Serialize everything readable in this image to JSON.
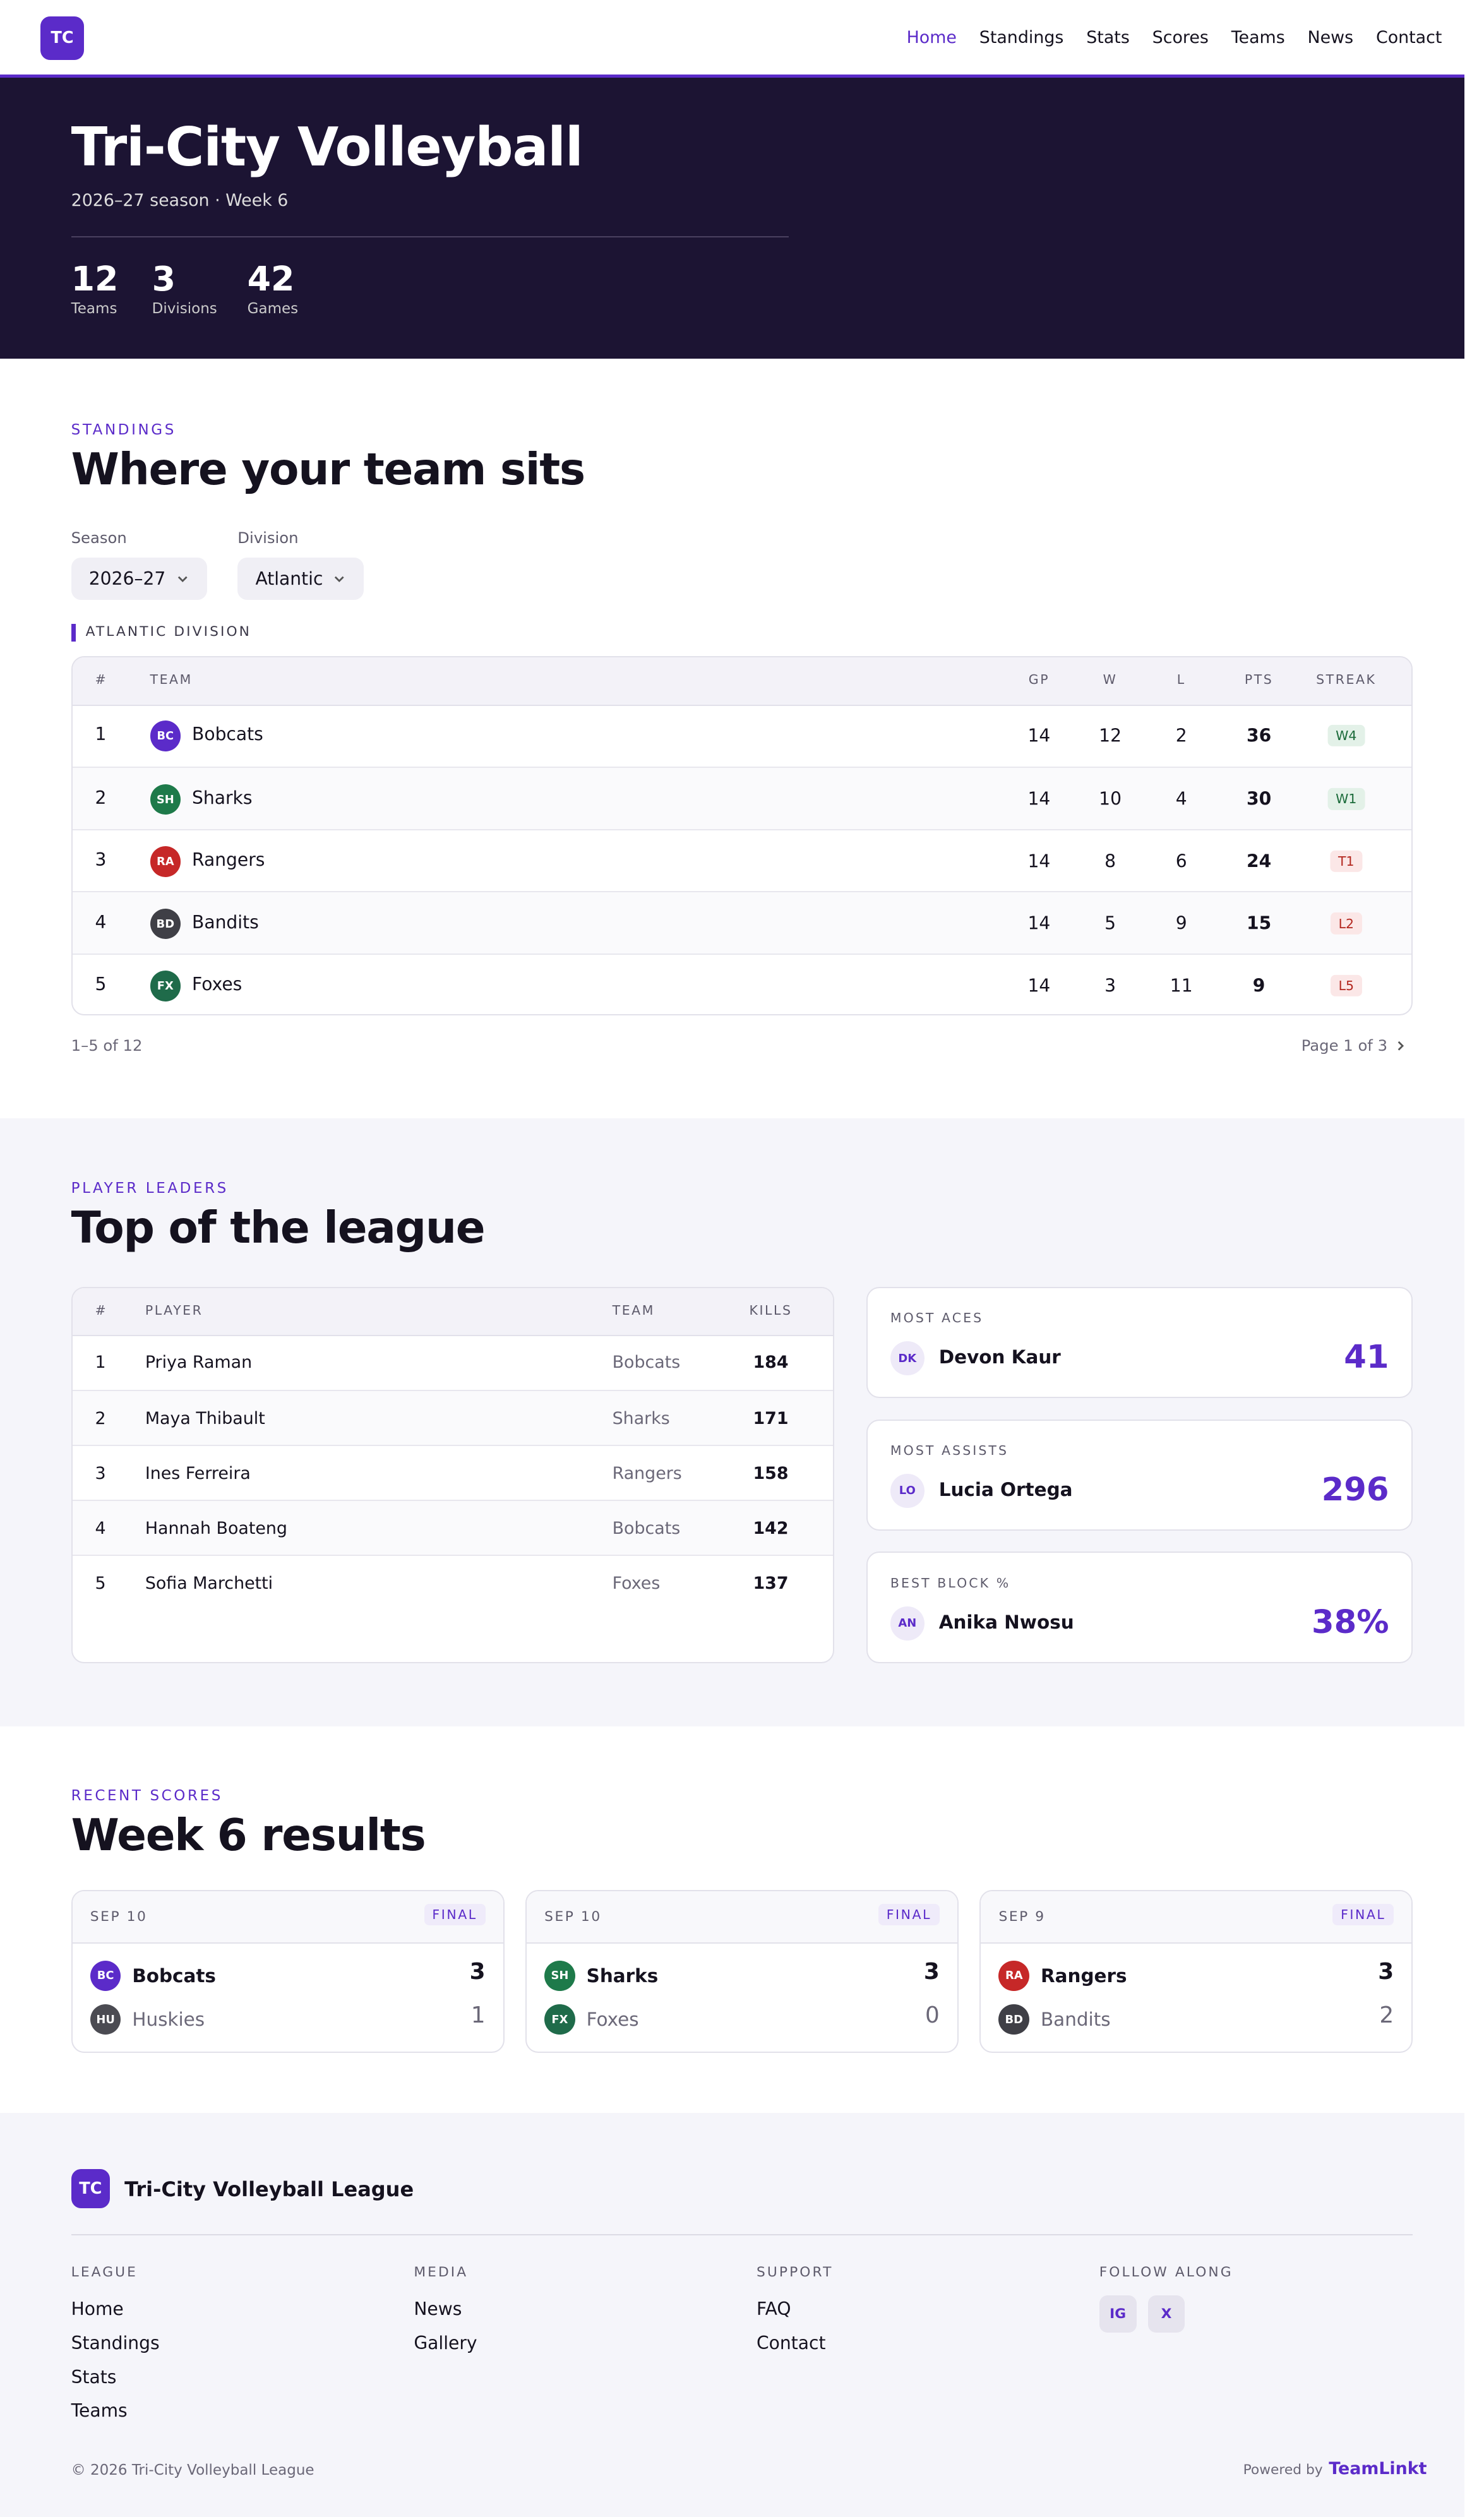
{
  "nav": {
    "logo": "TC",
    "links": [
      "Home",
      "Standings",
      "Stats",
      "Scores",
      "Teams",
      "News",
      "Contact"
    ]
  },
  "hero": {
    "title": "Tri-City Volleyball",
    "subtitle": "2026–27 season · Week 6",
    "stats": [
      {
        "value": 12,
        "label": "Teams"
      },
      {
        "value": 3,
        "label": "Divisions"
      },
      {
        "value": 42,
        "label": "Games"
      }
    ]
  },
  "standings": {
    "eyebrow": "STANDINGS",
    "heading": "Where your team sits",
    "filters": [
      {
        "label": "Season",
        "value": "2026–27"
      },
      {
        "label": "Division",
        "value": "Atlantic"
      }
    ],
    "division": "ATLANTIC DIVISION",
    "columns": [
      "#",
      "TEAM",
      "GP",
      "W",
      "L",
      "PTS",
      "STREAK"
    ],
    "rows": [
      {
        "rank": 1,
        "badge": "BC",
        "color": "#5b2bc9",
        "team": "Bobcats",
        "gp": 14,
        "w": 12,
        "l": 2,
        "pts": 36,
        "streak": "W4"
      },
      {
        "rank": 2,
        "badge": "SH",
        "color": "#1e7a4a",
        "team": "Sharks",
        "gp": 14,
        "w": 10,
        "l": 4,
        "pts": 30,
        "streak": "W1"
      },
      {
        "rank": 3,
        "badge": "RA",
        "color": "#c62828",
        "team": "Rangers",
        "gp": 14,
        "w": 8,
        "l": 6,
        "pts": 24,
        "streak": "T1"
      },
      {
        "rank": 4,
        "badge": "BD",
        "color": "#3f3f46",
        "team": "Bandits",
        "gp": 14,
        "w": 5,
        "l": 9,
        "pts": 15,
        "streak": "L2"
      },
      {
        "rank": 5,
        "badge": "FX",
        "color": "#1f6b4a",
        "team": "Foxes",
        "gp": 14,
        "w": 3,
        "l": 11,
        "pts": 9,
        "streak": "L5"
      }
    ],
    "range": "1–5 of 12",
    "page": "Page 1 of 3"
  },
  "leaders": {
    "eyebrow": "PLAYER LEADERS",
    "heading": "Top of the league",
    "columns": [
      "#",
      "PLAYER",
      "TEAM",
      "KILLS"
    ],
    "rows": [
      {
        "rank": 1,
        "player": "Priya Raman",
        "team": "Bobcats",
        "kills": 184
      },
      {
        "rank": 2,
        "player": "Maya Thibault",
        "team": "Sharks",
        "kills": 171
      },
      {
        "rank": 3,
        "player": "Ines Ferreira",
        "team": "Rangers",
        "kills": 158
      },
      {
        "rank": 4,
        "player": "Hannah Boateng",
        "team": "Bobcats",
        "kills": 142
      },
      {
        "rank": 5,
        "player": "Sofia Marchetti",
        "team": "Foxes",
        "kills": 137
      }
    ],
    "cards": [
      {
        "label": "MOST ACES",
        "initials": "DK",
        "name": "Devon Kaur",
        "value": "41"
      },
      {
        "label": "MOST ASSISTS",
        "initials": "LO",
        "name": "Lucia Ortega",
        "value": "296"
      },
      {
        "label": "BEST BLOCK %",
        "initials": "AN",
        "name": "Anika Nwosu",
        "value": "38%"
      }
    ]
  },
  "scores": {
    "eyebrow": "RECENT SCORES",
    "heading": "Week 6 results",
    "games": [
      {
        "date": "SEP 10",
        "status": "FINAL",
        "teams": [
          {
            "badge": "BC",
            "color": "#5b2bc9",
            "name": "Bobcats",
            "score": 3
          },
          {
            "badge": "HU",
            "color": "#4b4b52",
            "name": "Huskies",
            "score": 1
          }
        ]
      },
      {
        "date": "SEP 10",
        "status": "FINAL",
        "teams": [
          {
            "badge": "SH",
            "color": "#1e7a4a",
            "name": "Sharks",
            "score": 3
          },
          {
            "badge": "FX",
            "color": "#1f6b4a",
            "name": "Foxes",
            "score": 0
          }
        ]
      },
      {
        "date": "SEP 9",
        "status": "FINAL",
        "teams": [
          {
            "badge": "RA",
            "color": "#c62828",
            "name": "Rangers",
            "score": 3
          },
          {
            "badge": "BD",
            "color": "#3f3f46",
            "name": "Bandits",
            "score": 2
          }
        ]
      }
    ]
  },
  "footer": {
    "logo": "TC",
    "name": "Tri-City Volleyball League",
    "columns": [
      {
        "heading": "LEAGUE",
        "links": [
          "Home",
          "Standings",
          "Stats",
          "Teams"
        ]
      },
      {
        "heading": "MEDIA",
        "links": [
          "News",
          "Gallery"
        ]
      },
      {
        "heading": "SUPPORT",
        "links": [
          "FAQ",
          "Contact"
        ]
      },
      {
        "heading": "FOLLOW ALONG",
        "social": [
          "IG",
          "X"
        ]
      }
    ],
    "copyright": "© 2026 Tri-City Volleyball League",
    "powered": "Powered by",
    "brand": "TeamLinkt"
  }
}
